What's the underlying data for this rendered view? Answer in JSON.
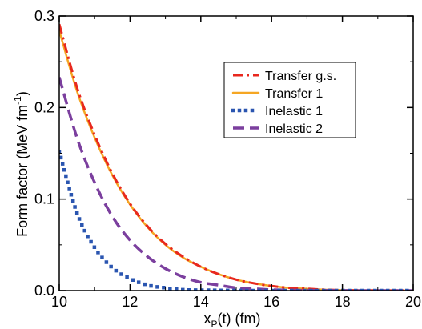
{
  "chart_data": {
    "type": "line",
    "xlabel_main": "x",
    "xlabel_sub": "P",
    "xlabel_rest": "(t) (fm)",
    "ylabel_main": "Form factor (MeV fm",
    "ylabel_sup": "-1",
    "ylabel_end": ")",
    "xlim": [
      10,
      20
    ],
    "ylim": [
      0,
      0.3
    ],
    "xticks": [
      "10",
      "12",
      "14",
      "16",
      "18",
      "20"
    ],
    "yticks": [
      "0.0",
      "0.1",
      "0.2",
      "0.3"
    ],
    "legend_position": "top-right",
    "series": [
      {
        "name": "Transfer g.s.",
        "color": "#e8281e",
        "style": "dashdot",
        "x": [
          10.0,
          10.5,
          11.0,
          11.5,
          12.0,
          12.5,
          13.0,
          13.5,
          14.0,
          14.5,
          15.0,
          15.5,
          16.0,
          16.5,
          17.0,
          17.5,
          18.0,
          18.5,
          19.0,
          19.5,
          20.0
        ],
        "y": [
          0.291,
          0.222,
          0.17,
          0.128,
          0.095,
          0.07,
          0.051,
          0.037,
          0.026,
          0.018,
          0.012,
          0.008,
          0.005,
          0.003,
          0.002,
          0.001,
          0.0005,
          0.0003,
          0.0002,
          0.0001,
          0.0
        ]
      },
      {
        "name": "Transfer 1",
        "color": "#f5a623",
        "style": "solid",
        "x": [
          10.0,
          10.5,
          11.0,
          11.5,
          12.0,
          12.5,
          13.0,
          13.5,
          14.0,
          14.5,
          15.0,
          15.5,
          16.0,
          16.5,
          17.0,
          17.5,
          18.0,
          18.5,
          19.0,
          19.5,
          20.0
        ],
        "y": [
          0.284,
          0.218,
          0.167,
          0.126,
          0.094,
          0.069,
          0.05,
          0.036,
          0.026,
          0.018,
          0.012,
          0.008,
          0.005,
          0.003,
          0.002,
          0.001,
          0.0005,
          0.0003,
          0.0002,
          0.0001,
          0.0
        ]
      },
      {
        "name": "Inelastic 1",
        "color": "#2a55b0",
        "style": "dotted",
        "x": [
          10.0,
          10.5,
          11.0,
          11.5,
          12.0,
          12.5,
          13.0,
          13.5,
          14.0,
          15.0,
          16.0,
          17.0,
          18.0,
          19.0,
          20.0
        ],
        "y": [
          0.152,
          0.085,
          0.047,
          0.025,
          0.013,
          0.006,
          0.003,
          0.001,
          0.0005,
          0.0001,
          0.0,
          0.0,
          0.0,
          0.0,
          0.0
        ]
      },
      {
        "name": "Inelastic 2",
        "color": "#7b3f9e",
        "style": "dashed",
        "x": [
          10.0,
          10.5,
          11.0,
          11.5,
          12.0,
          12.5,
          13.0,
          13.5,
          14.0,
          14.5,
          15.0,
          15.5,
          16.0,
          16.5,
          17.0,
          18.0,
          19.0,
          20.0
        ],
        "y": [
          0.233,
          0.167,
          0.118,
          0.081,
          0.055,
          0.037,
          0.024,
          0.015,
          0.009,
          0.006,
          0.003,
          0.002,
          0.001,
          0.0006,
          0.0003,
          0.0001,
          0.0,
          0.0
        ]
      }
    ]
  }
}
